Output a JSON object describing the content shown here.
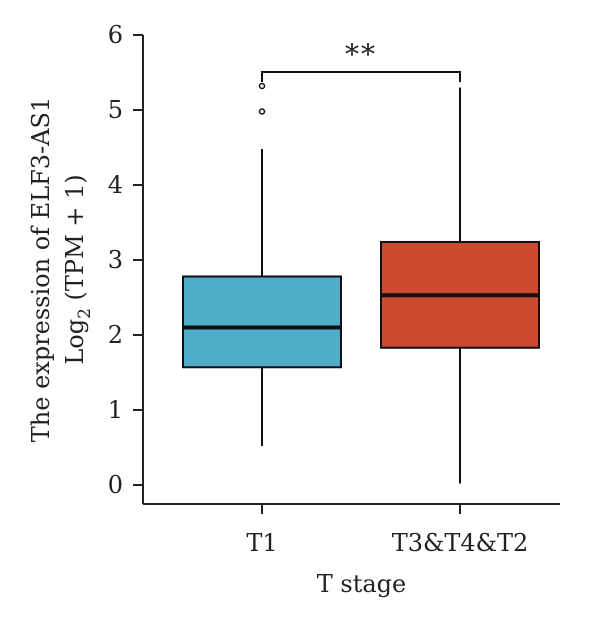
{
  "chart_data": {
    "type": "box",
    "title": "",
    "xlabel": "T stage",
    "ylabel_line1": "The expression of ELF3-AS1",
    "ylabel_line2_prefix": "Log",
    "ylabel_line2_sub": "2",
    "ylabel_line2_suffix": " (TPM + 1)",
    "ylim": [
      0,
      6
    ],
    "yticks": [
      0,
      1,
      2,
      3,
      4,
      5,
      6
    ],
    "categories": [
      "T1",
      "T3&T4&T2"
    ],
    "boxes": [
      {
        "category": "T1",
        "whisker_low": 0.52,
        "q1": 1.57,
        "median": 2.1,
        "q3": 2.78,
        "whisker_high": 4.48,
        "outliers": [
          4.98,
          5.32
        ],
        "color": "#4fadc9"
      },
      {
        "category": "T3&T4&T2",
        "whisker_low": 0.02,
        "q1": 1.83,
        "median": 2.53,
        "q3": 3.24,
        "whisker_high": 5.3,
        "outliers": [],
        "color": "#cd4a2e"
      }
    ],
    "significance": {
      "label": "**",
      "from": "T1",
      "to": "T3&T4&T2"
    }
  }
}
